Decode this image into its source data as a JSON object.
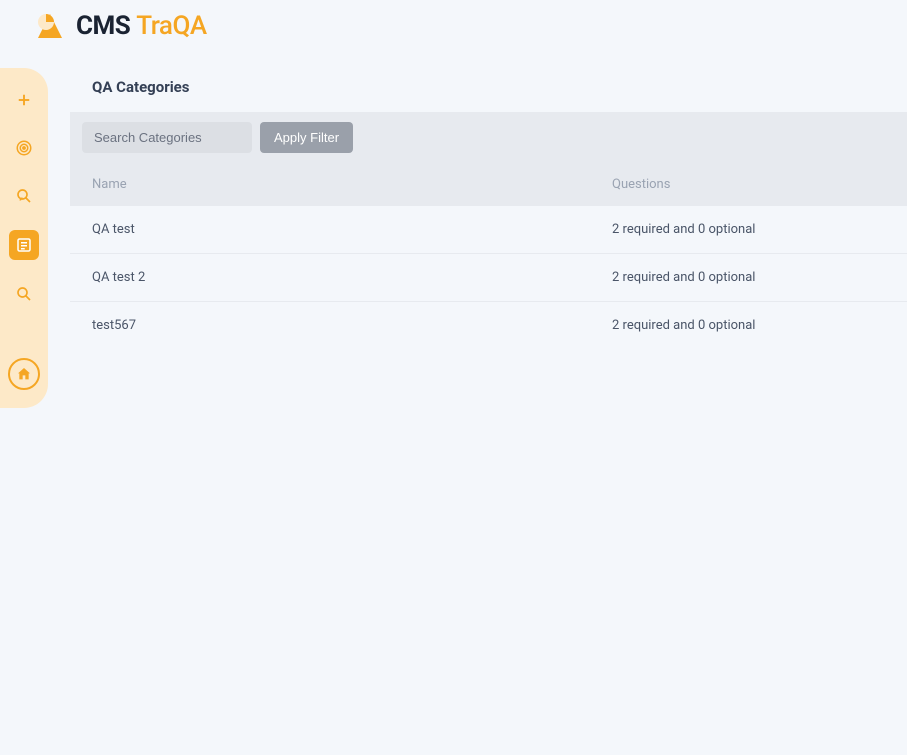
{
  "brand": {
    "part1": "CMS",
    "part2": "TraQA"
  },
  "sidebar": {
    "items": [
      {
        "name": "add",
        "active": false
      },
      {
        "name": "target",
        "active": false
      },
      {
        "name": "search-user",
        "active": false
      },
      {
        "name": "list",
        "active": true
      },
      {
        "name": "search",
        "active": false
      }
    ]
  },
  "page": {
    "title": "QA Categories",
    "search_placeholder": "Search Categories",
    "apply_label": "Apply Filter"
  },
  "table": {
    "columns": {
      "name": "Name",
      "questions": "Questions"
    },
    "rows": [
      {
        "name": "QA test",
        "questions": "2 required and 0 optional"
      },
      {
        "name": "QA test 2",
        "questions": "2 required and 0 optional"
      },
      {
        "name": "test567",
        "questions": "2 required and 0 optional"
      }
    ]
  },
  "colors": {
    "accent": "#f5a623",
    "sidebar_bg": "#fde9c8",
    "page_bg": "#f4f7fb",
    "bar_bg": "#e7eaef",
    "text_dark": "#344055",
    "text_body": "#4a5568",
    "text_muted": "#9aa3b2"
  }
}
